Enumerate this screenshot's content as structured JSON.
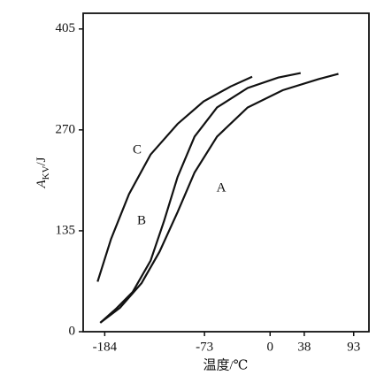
{
  "chart_data": {
    "type": "line",
    "ylabel_symbol": "A",
    "ylabel_subscript": "KV",
    "ylabel_unit": "/J",
    "xlabel": "温度/℃",
    "xlim": [
      -208,
      110
    ],
    "xticks": [
      -184,
      -73,
      0,
      38,
      93
    ],
    "ylim": [
      0,
      426
    ],
    "yticks": [
      0,
      135,
      270,
      405
    ],
    "series": [
      {
        "name": "C",
        "color": "#111111",
        "x": [
          -192,
          -177,
          -157,
          -133,
          -103,
          -74,
          -44,
          -20
        ],
        "values": [
          67,
          124,
          184,
          237,
          278,
          308,
          328,
          341
        ]
      },
      {
        "name": "B",
        "color": "#111111",
        "x": [
          -189,
          -172,
          -153,
          -133,
          -118,
          -103,
          -84,
          -59,
          -25,
          9,
          34
        ],
        "values": [
          12,
          30,
          53,
          95,
          148,
          207,
          261,
          300,
          326,
          340,
          346
        ]
      },
      {
        "name": "A",
        "color": "#111111",
        "x": [
          -189,
          -167,
          -143,
          -123,
          -103,
          -84,
          -59,
          -25,
          14,
          54,
          76
        ],
        "values": [
          12,
          32,
          65,
          107,
          160,
          213,
          261,
          300,
          323,
          338,
          345
        ]
      }
    ]
  }
}
